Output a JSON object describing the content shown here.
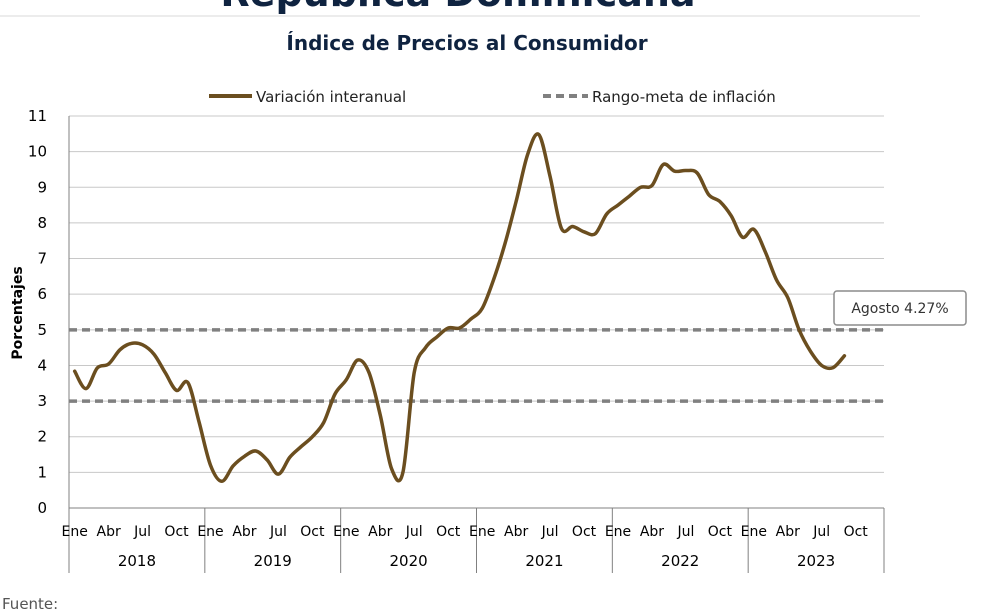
{
  "header": {
    "title": "República Dominicana",
    "subtitle": "Índice de Precios al Consumidor"
  },
  "footer": {
    "source_label": "Fuente:"
  },
  "colors": {
    "series_line": "#6b4e1f",
    "target_line": "#808080",
    "grid": "#c8c8c8",
    "title": "#0f2340"
  },
  "chart_data": {
    "type": "line",
    "ylabel": "Porcentajes",
    "ylim": [
      0,
      11
    ],
    "yticks": [
      0,
      1,
      2,
      3,
      4,
      5,
      6,
      7,
      8,
      9,
      10,
      11
    ],
    "grid": true,
    "legend_position": "top",
    "month_labels": [
      "Ene",
      "Abr",
      "Jul",
      "Oct"
    ],
    "years": [
      "2018",
      "2019",
      "2020",
      "2021",
      "2022",
      "2023"
    ],
    "series": [
      {
        "name": "Variación interanual",
        "style": "solid",
        "values": [
          3.84,
          3.35,
          3.93,
          4.04,
          4.44,
          4.62,
          4.58,
          4.32,
          3.8,
          3.3,
          3.52,
          2.4,
          1.2,
          0.75,
          1.18,
          1.45,
          1.6,
          1.35,
          0.95,
          1.42,
          1.72,
          2.0,
          2.4,
          3.2,
          3.6,
          4.15,
          3.8,
          2.6,
          1.1,
          1.0,
          3.8,
          4.5,
          4.8,
          5.05,
          5.05,
          5.3,
          5.6,
          6.4,
          7.4,
          8.6,
          9.9,
          10.48,
          9.3,
          7.85,
          7.9,
          7.75,
          7.7,
          8.25,
          8.5,
          8.75,
          9.0,
          9.05,
          9.64,
          9.45,
          9.47,
          9.4,
          8.8,
          8.6,
          8.2,
          7.6,
          7.82,
          7.2,
          6.4,
          5.9,
          5.0,
          4.4,
          4.0,
          3.94,
          4.27
        ]
      },
      {
        "name": "Rango-meta de inflación",
        "style": "dashed",
        "upper": 5,
        "lower": 3
      }
    ],
    "annotation": {
      "text": "Agosto 4.27%",
      "value": 4.27
    }
  }
}
